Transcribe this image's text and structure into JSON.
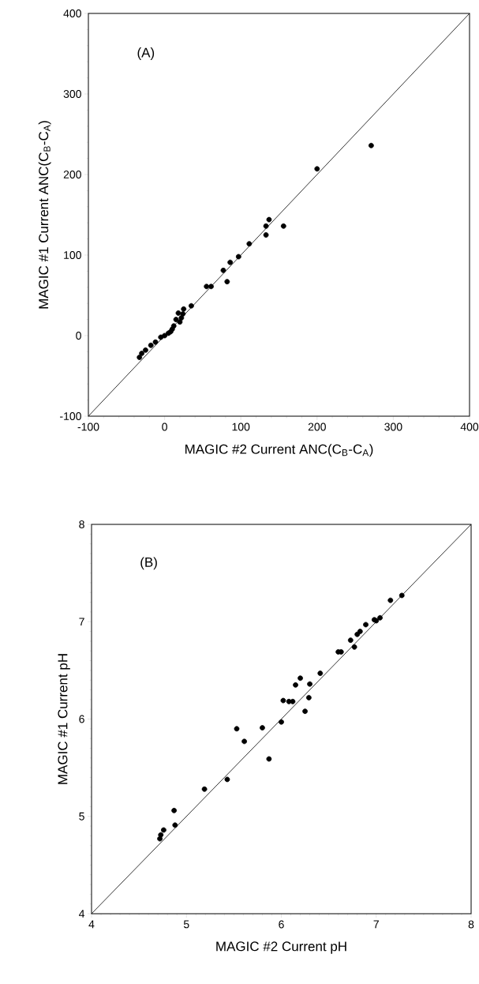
{
  "chart_data": [
    {
      "type": "scatter",
      "xlabel": "MAGIC #2 Current ANC(C$_{B}$-C$_{A}$)",
      "ylabel": "MAGIC #1 Current ANC(C$_{B}$-C$_{A}$)",
      "annotations": [
        "(A)"
      ],
      "xlim": [
        -100,
        400
      ],
      "ylim": [
        -100,
        400
      ],
      "xticks": [
        -100,
        0,
        100,
        200,
        300,
        400
      ],
      "yticks": [
        -100,
        0,
        100,
        200,
        300,
        400
      ],
      "grid": false,
      "series": [
        {
          "color": "#000000",
          "marker": "circle",
          "x": [
            271,
            200,
            137,
            133,
            156,
            133,
            111,
            97,
            86,
            77,
            82,
            55,
            61,
            35,
            25,
            24,
            22,
            20,
            18,
            15,
            12,
            10,
            8,
            5,
            0,
            -5,
            -12,
            -18,
            -25,
            -30,
            -33
          ],
          "values": [
            236,
            207,
            144,
            136,
            136,
            125,
            114,
            98,
            91,
            81,
            67,
            61,
            61,
            37,
            33,
            27,
            22,
            17,
            28,
            20,
            12,
            8,
            5,
            3,
            0,
            -2,
            -8,
            -12,
            -18,
            -22,
            -27
          ]
        },
        {
          "type": "line",
          "color": "#000000",
          "marker": "none",
          "x": [
            -100,
            400
          ],
          "values": [
            -100,
            400
          ]
        }
      ]
    },
    {
      "type": "scatter",
      "xlabel": "MAGIC #2 Current pH",
      "ylabel": "MAGIC #1 Current pH",
      "annotations": [
        "(B)"
      ],
      "xlim": [
        4,
        8
      ],
      "ylim": [
        4,
        8
      ],
      "xticks": [
        4,
        5,
        6,
        7,
        8
      ],
      "yticks": [
        4,
        5,
        6,
        7,
        8
      ],
      "grid": false,
      "series": [
        {
          "color": "#000000",
          "marker": "circle",
          "x": [
            7.27,
            7.15,
            7.04,
            7.0,
            6.98,
            6.89,
            6.83,
            6.8,
            6.73,
            6.77,
            6.63,
            6.6,
            6.41,
            6.2,
            6.15,
            6.3,
            6.29,
            6.25,
            6.02,
            6.08,
            6.12,
            6.0,
            5.8,
            5.53,
            5.61,
            5.87,
            5.43,
            5.19,
            4.87,
            4.88,
            4.76,
            4.73,
            4.72
          ],
          "values": [
            7.27,
            7.22,
            7.04,
            7.01,
            7.02,
            6.97,
            6.9,
            6.87,
            6.81,
            6.74,
            6.69,
            6.69,
            6.47,
            6.42,
            6.35,
            6.36,
            6.22,
            6.08,
            6.19,
            6.18,
            6.18,
            5.97,
            5.91,
            5.9,
            5.77,
            5.59,
            5.38,
            5.28,
            5.06,
            4.91,
            4.86,
            4.81,
            4.77
          ]
        },
        {
          "type": "line",
          "color": "#000000",
          "marker": "none",
          "x": [
            4,
            8
          ],
          "values": [
            4,
            8
          ]
        }
      ]
    }
  ]
}
